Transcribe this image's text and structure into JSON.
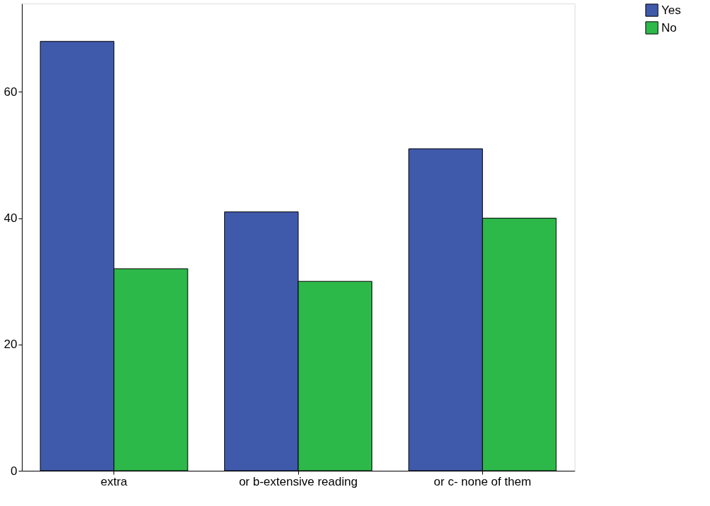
{
  "chart_data": {
    "type": "bar",
    "categories": [
      "extra",
      "or b-extensive reading",
      "or c- none of them"
    ],
    "series": [
      {
        "name": "Yes",
        "color": "#3f5aab",
        "values": [
          68,
          41,
          51
        ]
      },
      {
        "name": "No",
        "color": "#2db84a",
        "values": [
          32,
          30,
          40
        ]
      }
    ],
    "ylim": [
      0,
      74
    ],
    "yticks": [
      0,
      20,
      40,
      60
    ],
    "grid": false,
    "legend": "top right"
  }
}
